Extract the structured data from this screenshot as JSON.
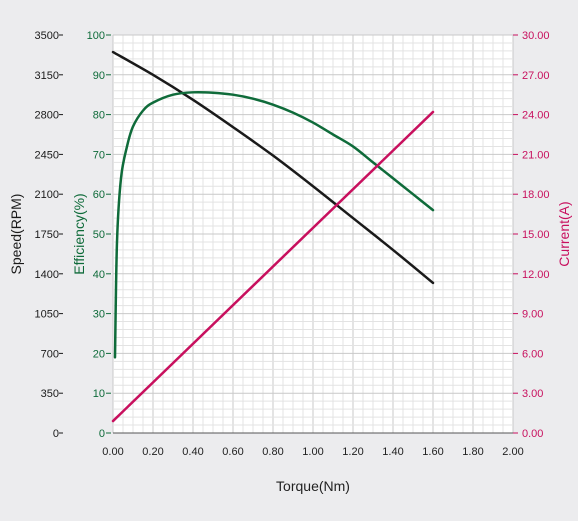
{
  "chart_data": {
    "type": "line",
    "title": "",
    "xlabel": "Torque(Nm)",
    "xlim": [
      0,
      2.0
    ],
    "x_ticks": [
      "0.00",
      "0.20",
      "0.40",
      "0.60",
      "0.80",
      "1.00",
      "1.20",
      "1.40",
      "1.60",
      "1.80",
      "2.00"
    ],
    "grid": true,
    "axes": {
      "speed": {
        "label": "Speed(RPM)",
        "ylim": [
          0,
          3500
        ],
        "ticks": [
          "0",
          "350",
          "700",
          "1050",
          "1400",
          "1750",
          "2100",
          "2450",
          "2800",
          "3150",
          "3500"
        ],
        "color": "#1a1a1a"
      },
      "efficiency": {
        "label": "Efficiency(%)",
        "ylim": [
          0,
          100
        ],
        "ticks": [
          "0",
          "10",
          "20",
          "30",
          "40",
          "50",
          "60",
          "70",
          "80",
          "90",
          "100"
        ],
        "color": "#0f6b3a"
      },
      "current": {
        "label": "Current(A)",
        "ylim": [
          0,
          30
        ],
        "ticks": [
          "0.00",
          "3.00",
          "6.00",
          "9.00",
          "12.00",
          "15.00",
          "18.00",
          "21.00",
          "24.00",
          "27.00",
          "30.00"
        ],
        "color": "#c8105e"
      }
    },
    "series": [
      {
        "axis": "speed",
        "color": "#1a1a1a",
        "x": [
          0.0,
          0.2,
          0.4,
          0.6,
          0.8,
          1.0,
          1.2,
          1.4,
          1.6
        ],
        "values": [
          3350,
          3150,
          2930,
          2690,
          2440,
          2170,
          1890,
          1610,
          1320
        ]
      },
      {
        "axis": "efficiency",
        "color": "#0f6b3a",
        "x": [
          0.01,
          0.02,
          0.04,
          0.07,
          0.1,
          0.15,
          0.2,
          0.3,
          0.4,
          0.5,
          0.6,
          0.7,
          0.8,
          0.9,
          1.0,
          1.1,
          1.2,
          1.3,
          1.4,
          1.5,
          1.6
        ],
        "values": [
          19,
          48,
          64,
          72,
          77,
          81,
          83,
          85,
          85.6,
          85.5,
          85,
          84,
          82.5,
          80.5,
          78,
          75,
          72,
          68,
          64,
          60,
          56
        ]
      },
      {
        "axis": "current",
        "color": "#c8105e",
        "x": [
          0.0,
          1.6
        ],
        "values": [
          0.9,
          24.2
        ]
      }
    ]
  }
}
